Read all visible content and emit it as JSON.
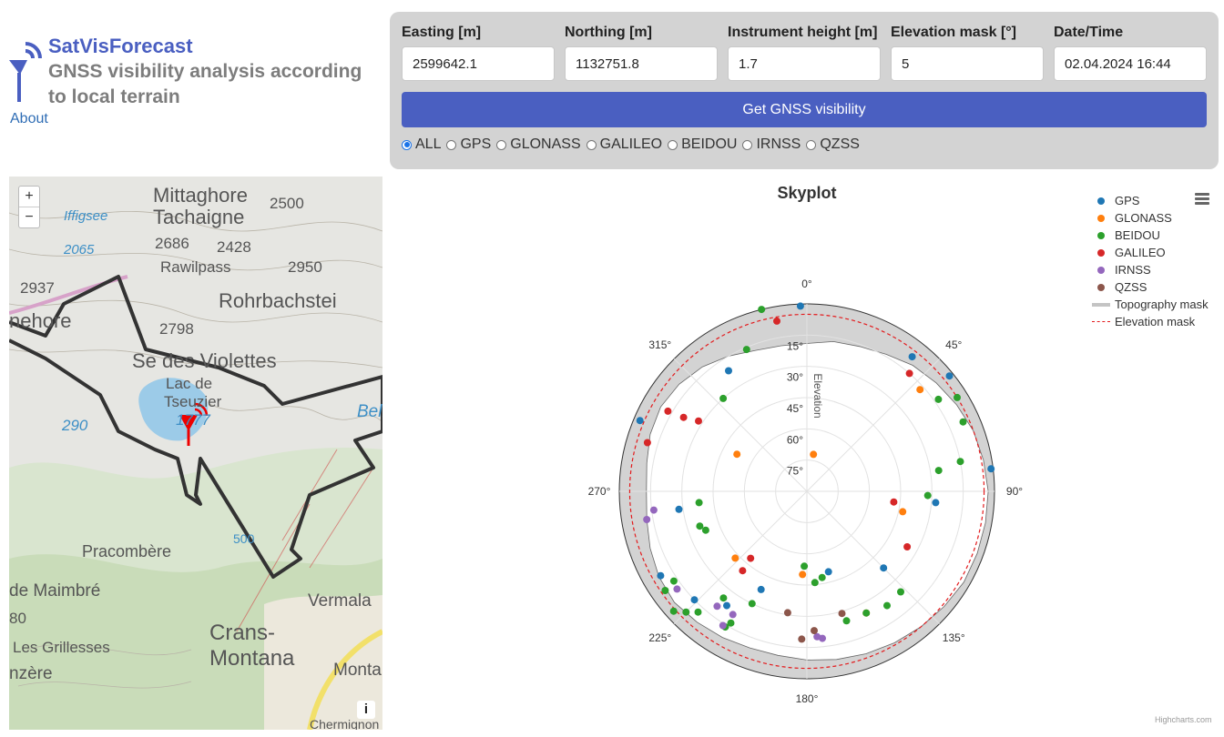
{
  "brand": {
    "title": "SatVisForecast",
    "subtitle": "GNSS visibility analysis according to local terrain",
    "about": "About"
  },
  "form": {
    "easting_label": "Easting [m]",
    "easting_value": "2599642.1",
    "northing_label": "Northing [m]",
    "northing_value": "1132751.8",
    "height_label": "Instrument height [m]",
    "height_value": "1.7",
    "mask_label": "Elevation mask [°]",
    "mask_value": "5",
    "datetime_label": "Date/Time",
    "datetime_value": "02.04.2024 16:44",
    "submit_label": "Get GNSS visibility",
    "systems": [
      "ALL",
      "GPS",
      "GLONASS",
      "GALILEO",
      "BEIDOU",
      "IRNSS",
      "QZSS"
    ],
    "selected_system": "ALL"
  },
  "map": {
    "zoom_in": "+",
    "zoom_out": "−",
    "info": "i",
    "labels": [
      "Mittaghore",
      "Tachaigne",
      "2500",
      "Iffigsee",
      "2065",
      "2686",
      "2428",
      "2950",
      "Rawilpass",
      "2937",
      "Rohrbachstei",
      "nehore",
      "2798",
      "Se des Violettes",
      "Lac de",
      "Tseuzier",
      "1777",
      "Bella",
      "290",
      "Pracombère",
      "de Maimbré",
      "Vermala",
      "Crans-",
      "Montana",
      "80",
      "Les Grillesses",
      "Monta",
      "nzère",
      "500",
      "Chermignon"
    ]
  },
  "chart_data": {
    "type": "scatter",
    "projection": "polar",
    "title": "Skyplot",
    "radial_axis_title": "Elevation",
    "azimuth_ticks": [
      "0°",
      "45°",
      "90°",
      "135°",
      "180°",
      "225°",
      "270°",
      "315°"
    ],
    "elevation_ticks": [
      "15°",
      "30°",
      "45°",
      "60°",
      "75°"
    ],
    "radial_range": [
      0,
      90
    ],
    "radial_reversed": true,
    "elevation_mask_deg": 5,
    "legend_position": "top-right",
    "credits": "Highcharts.com",
    "colors": {
      "GPS": "#1f77b4",
      "GLONASS": "#ff7f0e",
      "BEIDOU": "#2ca02c",
      "GALILEO": "#d62728",
      "IRNSS": "#9467bd",
      "QZSS": "#8c564b",
      "Topography mask": "#d3d3d3",
      "Elevation mask": "#e31a1c"
    },
    "legend": [
      "GPS",
      "GLONASS",
      "BEIDOU",
      "GALILEO",
      "IRNSS",
      "QZSS",
      "Topography mask",
      "Elevation mask"
    ],
    "series": [
      {
        "name": "GPS",
        "points": [
          [
            358,
            1
          ],
          [
            38,
            8
          ],
          [
            51,
            2
          ],
          [
            83,
            1
          ],
          [
            95,
            28
          ],
          [
            135,
            38
          ],
          [
            165,
            50
          ],
          [
            205,
            38
          ],
          [
            215,
            23
          ],
          [
            226,
            15
          ],
          [
            240,
            9
          ],
          [
            262,
            28
          ],
          [
            293,
            3
          ],
          [
            327,
            21
          ]
        ]
      },
      {
        "name": "GLONASS",
        "points": [
          [
            10,
            72
          ],
          [
            48,
            17
          ],
          [
            102,
            43
          ],
          [
            154,
            25
          ],
          [
            183,
            50
          ],
          [
            227,
            43
          ],
          [
            298,
            52
          ]
        ]
      },
      {
        "name": "BEIDOU",
        "points": [
          [
            318,
            30
          ],
          [
            337,
            16
          ],
          [
            346,
            0
          ],
          [
            55,
            13
          ],
          [
            58,
            5
          ],
          [
            66,
            8
          ],
          [
            79,
            15
          ],
          [
            81,
            26
          ],
          [
            92,
            32
          ],
          [
            137,
            24
          ],
          [
            145,
            23
          ],
          [
            154,
            25
          ],
          [
            163,
            25
          ],
          [
            170,
            48
          ],
          [
            175,
            46
          ],
          [
            182,
            54
          ],
          [
            206,
            30
          ],
          [
            210,
            17
          ],
          [
            211,
            14
          ],
          [
            218,
            25
          ],
          [
            222,
            12
          ],
          [
            225,
            8
          ],
          [
            228,
            4
          ],
          [
            235,
            7
          ],
          [
            236,
            13
          ],
          [
            249,
            38
          ],
          [
            252,
            36
          ],
          [
            264,
            38
          ]
        ]
      },
      {
        "name": "GALILEO",
        "points": [
          [
            350,
            7
          ],
          [
            41,
            15
          ],
          [
            97,
            48
          ],
          [
            119,
            35
          ],
          [
            219,
            41
          ],
          [
            220,
            48
          ],
          [
            301,
            21
          ],
          [
            303,
            28
          ],
          [
            300,
            13
          ],
          [
            287,
            10
          ]
        ]
      },
      {
        "name": "IRNSS",
        "points": [
          [
            174,
            19
          ],
          [
            176,
            20
          ],
          [
            211,
            21
          ],
          [
            212,
            14
          ],
          [
            218,
            20
          ],
          [
            233,
            12
          ],
          [
            260,
            12
          ],
          [
            263,
            16
          ]
        ]
      },
      {
        "name": "QZSS",
        "points": [
          [
            164,
            29
          ],
          [
            177,
            23
          ],
          [
            182,
            19
          ],
          [
            189,
            31
          ]
        ]
      }
    ]
  }
}
